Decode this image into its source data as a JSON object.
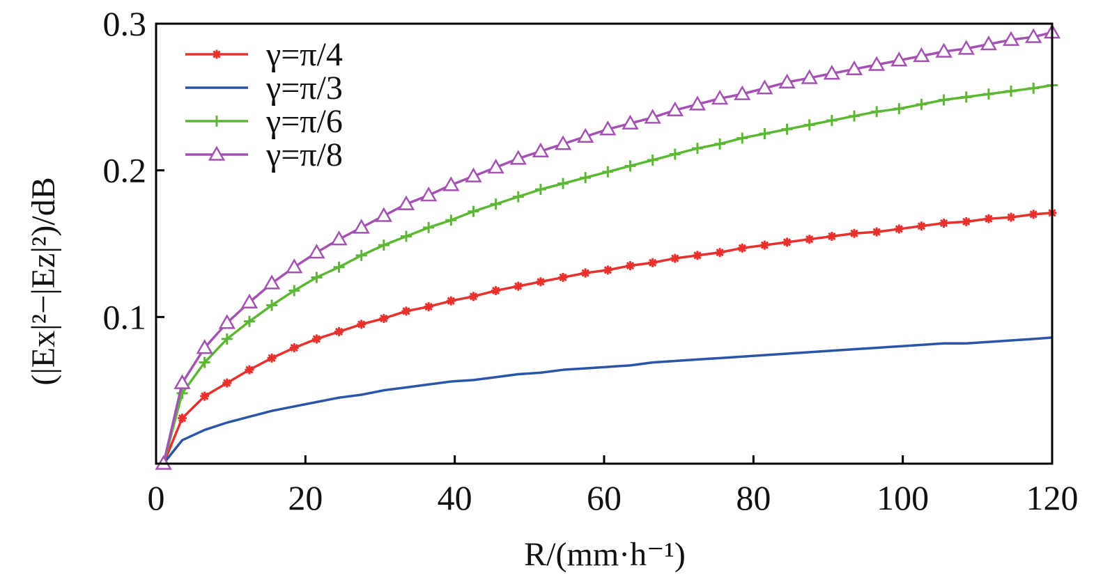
{
  "chart_data": {
    "type": "line",
    "xlabel": "R/(mm·h⁻¹)",
    "ylabel": "(|Ex|²−|Ez|²)/dB",
    "xlim": [
      0,
      120
    ],
    "ylim": [
      0,
      0.3
    ],
    "x_ticks": [
      "0",
      "20",
      "40",
      "60",
      "80",
      "100",
      "120"
    ],
    "y_ticks": [
      "0.1",
      "0.2",
      "0.3"
    ],
    "grid": false,
    "legend_position": "top-left",
    "x": [
      1,
      3.5,
      6.5,
      9.5,
      12.5,
      15.5,
      18.5,
      21.5,
      24.5,
      27.5,
      30.5,
      33.5,
      36.5,
      39.5,
      42.5,
      45.5,
      48.5,
      51.5,
      54.5,
      57.5,
      60.5,
      63.5,
      66.5,
      69.5,
      72.5,
      75.5,
      78.5,
      81.5,
      84.5,
      87.5,
      90.5,
      93.5,
      96.5,
      99.5,
      102.5,
      105.5,
      108.5,
      111.5,
      114.5,
      117.5,
      120
    ],
    "series": [
      {
        "name": "γ=π/4",
        "color": "#e8302c",
        "marker": "asterisk",
        "values": [
          0.0,
          0.031,
          0.046,
          0.055,
          0.064,
          0.072,
          0.079,
          0.085,
          0.09,
          0.095,
          0.099,
          0.104,
          0.107,
          0.111,
          0.114,
          0.118,
          0.121,
          0.124,
          0.127,
          0.13,
          0.132,
          0.135,
          0.137,
          0.14,
          0.142,
          0.144,
          0.147,
          0.149,
          0.151,
          0.153,
          0.155,
          0.157,
          0.158,
          0.16,
          0.162,
          0.164,
          0.165,
          0.167,
          0.168,
          0.17,
          0.171
        ]
      },
      {
        "name": "γ=π/3",
        "color": "#2a55a8",
        "marker": "none",
        "values": [
          0.0,
          0.016,
          0.023,
          0.028,
          0.032,
          0.036,
          0.039,
          0.042,
          0.045,
          0.047,
          0.05,
          0.052,
          0.054,
          0.056,
          0.057,
          0.059,
          0.061,
          0.062,
          0.064,
          0.065,
          0.066,
          0.067,
          0.069,
          0.07,
          0.071,
          0.072,
          0.073,
          0.074,
          0.075,
          0.076,
          0.077,
          0.078,
          0.079,
          0.08,
          0.081,
          0.082,
          0.082,
          0.083,
          0.084,
          0.085,
          0.086
        ]
      },
      {
        "name": "γ=π/6",
        "color": "#5cb833",
        "marker": "plus",
        "values": [
          0.0,
          0.048,
          0.069,
          0.085,
          0.097,
          0.108,
          0.118,
          0.127,
          0.134,
          0.142,
          0.149,
          0.155,
          0.161,
          0.166,
          0.172,
          0.177,
          0.182,
          0.187,
          0.191,
          0.195,
          0.199,
          0.203,
          0.207,
          0.211,
          0.215,
          0.218,
          0.222,
          0.225,
          0.228,
          0.231,
          0.234,
          0.237,
          0.24,
          0.242,
          0.245,
          0.248,
          0.25,
          0.252,
          0.254,
          0.256,
          0.258
        ]
      },
      {
        "name": "γ=π/8",
        "color": "#a452b2",
        "marker": "triangle",
        "values": [
          0.0,
          0.055,
          0.079,
          0.096,
          0.11,
          0.123,
          0.134,
          0.144,
          0.153,
          0.161,
          0.169,
          0.177,
          0.183,
          0.19,
          0.196,
          0.202,
          0.208,
          0.213,
          0.218,
          0.223,
          0.228,
          0.232,
          0.236,
          0.241,
          0.245,
          0.249,
          0.252,
          0.256,
          0.26,
          0.263,
          0.266,
          0.269,
          0.272,
          0.275,
          0.278,
          0.281,
          0.283,
          0.286,
          0.289,
          0.291,
          0.294
        ]
      }
    ]
  }
}
